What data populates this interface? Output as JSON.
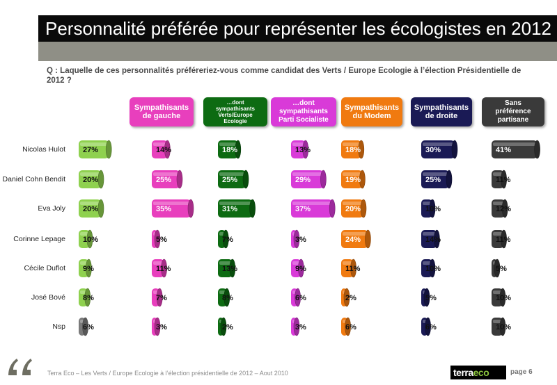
{
  "title": "Personnalité préférée pour représenter les écologistes en 2012",
  "question": "Q : Laquelle de ces personnalités préféreriez-vous comme candidat des Verts / Europe Ecologie à l’élection Présidentielle de 2012 ?",
  "footer": "Terra Eco – Les Verts / Europe Ecologie à l’élection présidentielle de 2012 – Aout 2010",
  "page_label": "page 6",
  "logo": {
    "part1": "terra",
    "part2": "eco"
  },
  "icons": {
    "quote": "quote-icon"
  },
  "chart_data": {
    "type": "bar",
    "title": "Personnalité préférée pour représenter les écologistes en 2012",
    "categories": [
      "Nicolas Hulot",
      "Daniel Cohn Bendit",
      "Eva Joly",
      "Corinne Lepage",
      "Cécile Duflot",
      "José Bové",
      "Nsp"
    ],
    "series": [
      {
        "name": "",
        "color": "#8fd14f",
        "values": [
          27,
          20,
          20,
          10,
          9,
          8,
          6
        ]
      },
      {
        "name": "Sympathisants\nde gauche",
        "color": "#e83fbd",
        "values": [
          14,
          25,
          35,
          5,
          11,
          7,
          3
        ]
      },
      {
        "name": "…dont\nsympathisants\nVerts/Europe\nEcologie",
        "color": "#0d6b12",
        "values": [
          18,
          25,
          31,
          7,
          13,
          8,
          2
        ]
      },
      {
        "name": "…dont\nsympathisants\nParti Socialiste",
        "color": "#d93ad8",
        "values": [
          13,
          29,
          37,
          3,
          9,
          6,
          3
        ]
      },
      {
        "name": "Sympathisants\ndu Modem",
        "color": "#f07a10",
        "values": [
          18,
          19,
          20,
          24,
          11,
          2,
          6
        ]
      },
      {
        "name": "Sympathisants\nde droite",
        "color": "#1a1a55",
        "values": [
          30,
          25,
          10,
          14,
          10,
          5,
          6
        ]
      },
      {
        "name": "Sans\npréférence\npartisane",
        "color": "#3a3a3a",
        "values": [
          41,
          11,
          12,
          11,
          5,
          10,
          10
        ]
      }
    ],
    "nsp_color": "#7a7a7a",
    "value_suffix": "%"
  }
}
